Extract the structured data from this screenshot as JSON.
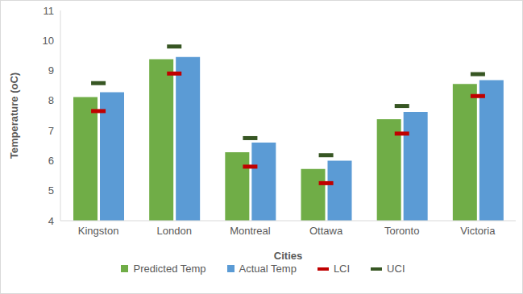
{
  "chart_data": {
    "type": "bar",
    "x_label": "Cities",
    "y_label": "Temperature (oC)",
    "categories": [
      "Kingston",
      "London",
      "Montreal",
      "Ottawa",
      "Toronto",
      "Victoria"
    ],
    "series": [
      {
        "name": "Predicted Temp",
        "type": "bar",
        "color": "#70ad47",
        "values": [
          8.12,
          9.38,
          6.28,
          5.72,
          7.38,
          8.55
        ]
      },
      {
        "name": "Actual Temp",
        "type": "bar",
        "color": "#5b9bd5",
        "values": [
          8.28,
          9.45,
          6.6,
          6.0,
          7.62,
          8.68
        ]
      },
      {
        "name": "LCI",
        "type": "scatter",
        "marker": "dash",
        "color": "#c00000",
        "values": [
          7.65,
          8.9,
          5.8,
          5.25,
          6.9,
          8.15
        ]
      },
      {
        "name": "UCI",
        "type": "scatter",
        "marker": "dash",
        "color": "#375623",
        "values": [
          8.58,
          9.8,
          6.75,
          6.18,
          7.82,
          8.88
        ]
      }
    ],
    "ylim": [
      4,
      11
    ],
    "yticks": [
      4,
      5,
      6,
      7,
      8,
      9,
      10,
      11
    ],
    "grid": false,
    "legend": "bottom"
  }
}
